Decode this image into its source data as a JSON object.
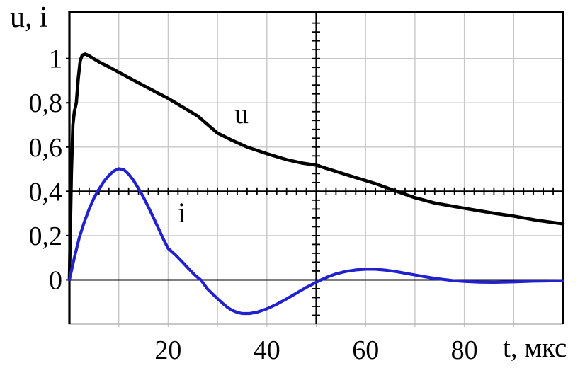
{
  "labels": {
    "y_axis_title": "u, i",
    "x_axis_label": "t, мкс"
  },
  "style": {
    "background": "#ffffff",
    "curve_u_color": "#000000",
    "curve_i_color": "#2121cd",
    "grid_color": "#c7c7c7",
    "bottom_border_color": "#b5b5b5",
    "axis_color": "#000000"
  },
  "chart_data": {
    "type": "line",
    "title": "",
    "xlabel": "t, мкс",
    "ylabel": "u, i",
    "xlim": [
      0,
      100
    ],
    "ylim": [
      -0.2,
      1.21
    ],
    "grid": {
      "on": true,
      "x_lines": [
        10,
        20,
        30,
        40,
        50,
        60,
        70,
        80,
        90
      ],
      "y_lines": [
        0.2,
        0.4,
        0.6,
        0.8,
        1.0
      ]
    },
    "x_tick_values": [
      20,
      40,
      60,
      80
    ],
    "x_tick_labels": [
      "20",
      "40",
      "60",
      "80"
    ],
    "y_tick_values": [
      0,
      0.2,
      0.4,
      0.6,
      0.8,
      1.0
    ],
    "y_tick_labels": [
      "0",
      "0,2",
      "0,4",
      "0,6",
      "0,8",
      "1"
    ],
    "ruler": {
      "horizontal_value": 0.4,
      "horizontal_tick_step_t": 2,
      "vertical_position_t": 50,
      "vertical_tick_step_v": 0.04,
      "vertical_tick_range_v": [
        -0.2,
        1.2
      ]
    },
    "legend_position": "inline-curve-labels",
    "series": [
      {
        "name": "u",
        "label": "u",
        "color": "#000000",
        "points": [
          [
            0,
            0
          ],
          [
            0.4,
            0.48
          ],
          [
            0.7,
            0.7
          ],
          [
            1.0,
            0.76
          ],
          [
            1.4,
            0.8
          ],
          [
            1.8,
            0.91
          ],
          [
            2.2,
            0.99
          ],
          [
            2.6,
            1.015
          ],
          [
            3.2,
            1.02
          ],
          [
            4,
            1.012
          ],
          [
            5,
            0.998
          ],
          [
            6,
            0.985
          ],
          [
            8,
            0.962
          ],
          [
            10,
            0.938
          ],
          [
            12,
            0.914
          ],
          [
            15,
            0.878
          ],
          [
            18,
            0.843
          ],
          [
            20,
            0.82
          ],
          [
            23,
            0.78
          ],
          [
            26,
            0.74
          ],
          [
            30,
            0.663
          ],
          [
            33,
            0.63
          ],
          [
            36,
            0.6
          ],
          [
            40,
            0.57
          ],
          [
            44,
            0.543
          ],
          [
            47,
            0.528
          ],
          [
            50,
            0.518
          ],
          [
            54,
            0.49
          ],
          [
            58,
            0.462
          ],
          [
            62,
            0.435
          ],
          [
            66,
            0.402
          ],
          [
            70,
            0.371
          ],
          [
            74,
            0.347
          ],
          [
            78,
            0.331
          ],
          [
            82,
            0.316
          ],
          [
            86,
            0.301
          ],
          [
            90,
            0.288
          ],
          [
            95,
            0.268
          ],
          [
            100,
            0.253
          ]
        ]
      },
      {
        "name": "i",
        "label": "i",
        "color": "#2121cd",
        "points": [
          [
            0,
            0
          ],
          [
            0.5,
            0.05
          ],
          [
            1,
            0.1
          ],
          [
            2,
            0.19
          ],
          [
            3,
            0.26
          ],
          [
            4,
            0.32
          ],
          [
            5,
            0.37
          ],
          [
            6,
            0.41
          ],
          [
            7,
            0.445
          ],
          [
            8,
            0.472
          ],
          [
            9,
            0.492
          ],
          [
            10,
            0.502
          ],
          [
            11,
            0.498
          ],
          [
            12,
            0.478
          ],
          [
            13,
            0.449
          ],
          [
            14,
            0.413
          ],
          [
            15,
            0.373
          ],
          [
            16,
            0.329
          ],
          [
            17,
            0.282
          ],
          [
            18,
            0.234
          ],
          [
            19,
            0.186
          ],
          [
            20,
            0.142
          ],
          [
            21.5,
            0.112
          ],
          [
            23,
            0.078
          ],
          [
            24,
            0.054
          ],
          [
            25.5,
            0.02
          ],
          [
            26.6,
            0
          ],
          [
            28,
            -0.042
          ],
          [
            30,
            -0.085
          ],
          [
            31,
            -0.105
          ],
          [
            32,
            -0.124
          ],
          [
            33,
            -0.138
          ],
          [
            34,
            -0.147
          ],
          [
            35,
            -0.152
          ],
          [
            36.5,
            -0.152
          ],
          [
            38,
            -0.146
          ],
          [
            40,
            -0.131
          ],
          [
            42,
            -0.11
          ],
          [
            44,
            -0.086
          ],
          [
            46,
            -0.06
          ],
          [
            48,
            -0.034
          ],
          [
            50,
            -0.011
          ],
          [
            51,
            0
          ],
          [
            52.5,
            0.015
          ],
          [
            54,
            0.027
          ],
          [
            56,
            0.038
          ],
          [
            58,
            0.045
          ],
          [
            60,
            0.048
          ],
          [
            62,
            0.048
          ],
          [
            64,
            0.044
          ],
          [
            66,
            0.038
          ],
          [
            68,
            0.03
          ],
          [
            70,
            0.022
          ],
          [
            72,
            0.014
          ],
          [
            74,
            0.007
          ],
          [
            76,
            0.001
          ],
          [
            78,
            -0.004
          ],
          [
            80,
            -0.007
          ],
          [
            83,
            -0.01
          ],
          [
            86,
            -0.011
          ],
          [
            90,
            -0.009
          ],
          [
            94,
            -0.006
          ],
          [
            100,
            -0.004
          ]
        ]
      }
    ]
  }
}
